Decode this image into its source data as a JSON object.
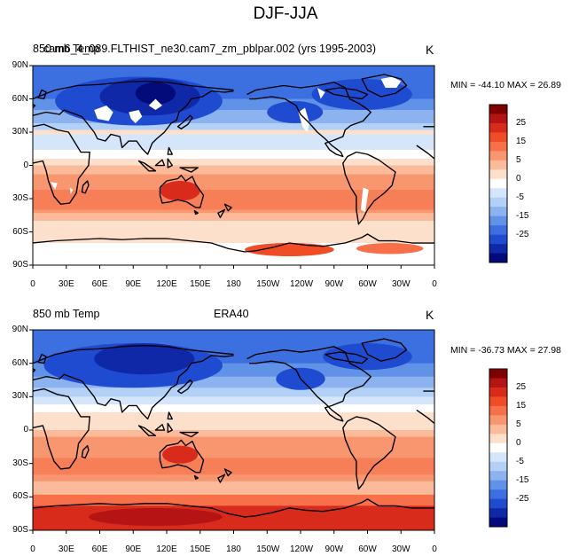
{
  "title": "DJF-JJA",
  "colorbar": {
    "labels": [
      "25",
      "15",
      "5",
      "0",
      "-5",
      "-15",
      "-25"
    ],
    "colors": [
      "#7f0000",
      "#b51414",
      "#d92b1c",
      "#f04c25",
      "#f7704a",
      "#f8976f",
      "#fbbb9a",
      "#fde0cc",
      "#ffffff",
      "#d5e6fb",
      "#b3d0f6",
      "#8cb3ef",
      "#6092e8",
      "#3c6fe0",
      "#1f4bd0",
      "#0e28a8",
      "#030a7a"
    ]
  },
  "panels": [
    {
      "name": "top",
      "left_title": "850 mb Temp",
      "overlay_title": "cam6_4_089.FLTHIST_ne30.cam7_zm_pblpar.002 (yrs 1995-2003)",
      "center_title": "",
      "units": "K",
      "minmax": "MIN = -44.10 MAX =  26.89"
    },
    {
      "name": "bottom",
      "left_title": "850 mb Temp",
      "overlay_title": "",
      "center_title": "ERA40",
      "units": "K",
      "minmax": "MIN = -36.73 MAX =  27.98"
    }
  ],
  "lat_labels": [
    "90N",
    "60N",
    "30N",
    "0",
    "30S",
    "60S",
    "90S"
  ],
  "lon_labels": [
    "0",
    "30E",
    "60E",
    "90E",
    "120E",
    "150E",
    "180",
    "150W",
    "120W",
    "90W",
    "60W",
    "30W",
    "0"
  ]
}
